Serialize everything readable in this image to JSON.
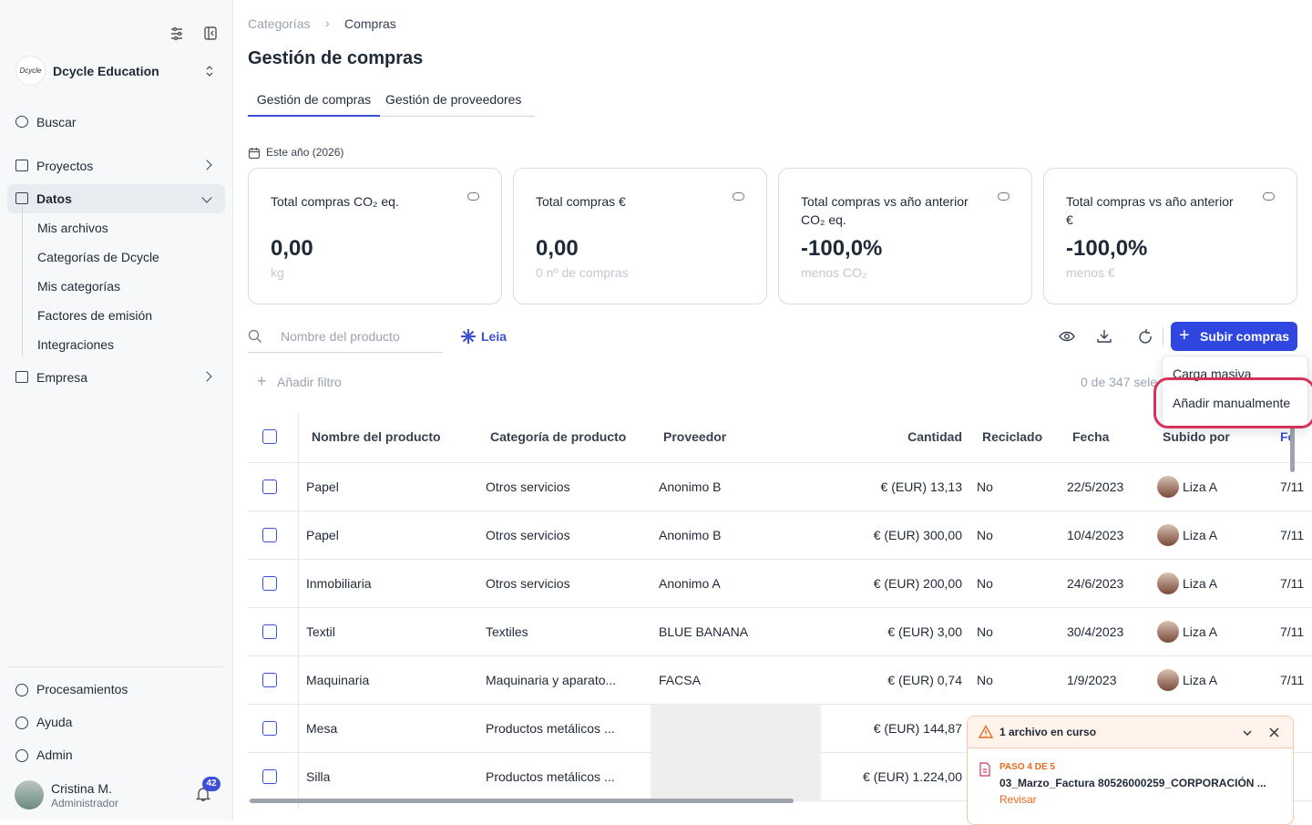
{
  "sidebar": {
    "logo_text": "Dcycle",
    "org": "Dcycle Education",
    "nav": [
      {
        "label": "Buscar"
      },
      {
        "label": "Proyectos"
      },
      {
        "label": "Datos",
        "children": [
          "Mis archivos",
          "Categorías de Dcycle",
          "Mis categorías",
          "Factores de emisión",
          "Integraciones"
        ]
      },
      {
        "label": "Empresa"
      }
    ],
    "bottom": [
      "Procesamientos",
      "Ayuda",
      "Admin"
    ],
    "user": {
      "name": "Cristina M.",
      "role": "Administrador",
      "notifications": "42"
    }
  },
  "breadcrumb": [
    "Categorías",
    "Compras"
  ],
  "title": "Gestión de compras",
  "tabs": [
    "Gestión de compras",
    "Gestión de proveedores"
  ],
  "period": "Este año (2026)",
  "cards": [
    {
      "title": "Total compras CO₂ eq.",
      "value": "0,00",
      "sub": "kg"
    },
    {
      "title": "Total compras €",
      "value": "0,00",
      "sub": "0 nº de compras"
    },
    {
      "title": "Total compras vs año anterior CO₂ eq.",
      "value": "-100,0%",
      "sub": "menos CO₂"
    },
    {
      "title": "Total compras vs año anterior €",
      "value": "-100,0%",
      "sub": "menos €"
    }
  ],
  "toolbar": {
    "search_placeholder": "Nombre del producto",
    "leia": "Leia",
    "upload": "Subir compras",
    "filter": "Añadir filtro",
    "selection": "0 de 347 sele"
  },
  "dropdown": [
    "Carga masiva",
    "Añadir manualmente"
  ],
  "table": {
    "columns": [
      "Nombre del producto",
      "Categoría de producto",
      "Proveedor",
      "Cantidad",
      "Reciclado",
      "Fecha",
      "Subido por",
      "Fe"
    ],
    "rows": [
      [
        "Papel",
        "Otros servicios",
        "Anonimo B",
        "€ (EUR) 13,13",
        "No",
        "22/5/2023",
        "Liza A",
        "7/11"
      ],
      [
        "Papel",
        "Otros servicios",
        "Anonimo B",
        "€ (EUR) 300,00",
        "No",
        "10/4/2023",
        "Liza A",
        "7/11"
      ],
      [
        "Inmobiliaria",
        "Otros servicios",
        "Anonimo A",
        "€ (EUR) 200,00",
        "No",
        "24/6/2023",
        "Liza A",
        "7/11"
      ],
      [
        "Textil",
        "Textiles",
        "BLUE BANANA",
        "€ (EUR) 3,00",
        "No",
        "30/4/2023",
        "Liza A",
        "7/11"
      ],
      [
        "Maquinaria",
        "Maquinaria y aparato...",
        "FACSA",
        "€ (EUR) 0,74",
        "No",
        "1/9/2023",
        "Liza A",
        "7/11"
      ],
      [
        "Mesa",
        "Productos metálicos ...",
        null,
        "€ (EUR) 144,87",
        null,
        null,
        null,
        null
      ],
      [
        "Silla",
        "Productos metálicos ...",
        null,
        "€ (EUR) 1.224,00",
        null,
        null,
        null,
        null
      ]
    ]
  },
  "upload_status": {
    "title": "1 archivo en curso",
    "step": "PASO 4 DE 5",
    "file": "03_Marzo_Factura 80526000259_CORPORACIÓN ...",
    "action": "Revisar"
  }
}
